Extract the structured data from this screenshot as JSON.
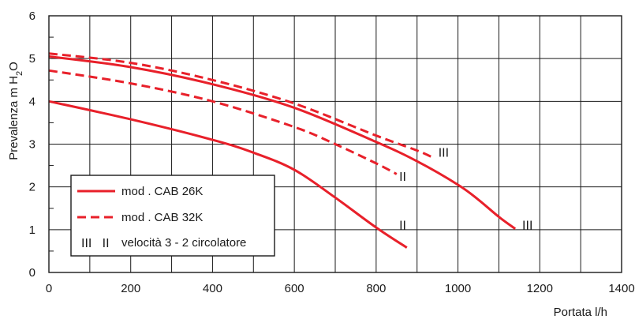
{
  "chart_data": {
    "type": "line",
    "title": "",
    "xlabel": "Portata l/h",
    "ylabel_main": "Prevalenza m H",
    "ylabel_sub": "2",
    "ylabel_tail": "O",
    "xlim": [
      0,
      1400
    ],
    "ylim": [
      0,
      6
    ],
    "x_ticks": [
      0,
      200,
      400,
      600,
      800,
      1000,
      1200,
      1400
    ],
    "y_ticks": [
      0,
      1,
      2,
      3,
      4,
      5,
      6
    ],
    "x_tick_labels": [
      "0",
      "200",
      "400",
      "600",
      "800",
      "1000",
      "1200",
      "1400"
    ],
    "y_tick_labels": [
      "0",
      "1",
      "2",
      "3",
      "4",
      "5",
      "6"
    ],
    "grid": true,
    "line_color": "#e8202a",
    "series": [
      {
        "label": "III",
        "style": "solid",
        "x": [
          0,
          200,
          400,
          600,
          800,
          900,
          1000,
          1050,
          1100,
          1140
        ],
        "y": [
          5.05,
          4.8,
          4.4,
          3.85,
          3.05,
          2.6,
          2.05,
          1.7,
          1.3,
          1.02
        ]
      },
      {
        "label": "II",
        "style": "solid",
        "x": [
          0,
          200,
          400,
          500,
          600,
          700,
          800,
          875
        ],
        "y": [
          4.0,
          3.58,
          3.1,
          2.8,
          2.4,
          1.75,
          1.05,
          0.58
        ]
      },
      {
        "label": "III",
        "style": "dashed",
        "x": [
          0,
          200,
          400,
          600,
          800,
          900,
          940
        ],
        "y": [
          5.12,
          4.9,
          4.5,
          3.95,
          3.2,
          2.85,
          2.68
        ]
      },
      {
        "label": "II",
        "style": "dashed",
        "x": [
          0,
          200,
          400,
          600,
          700,
          800,
          850
        ],
        "y": [
          4.72,
          4.42,
          4.0,
          3.4,
          3.0,
          2.55,
          2.3
        ]
      }
    ],
    "curve_labels": [
      {
        "text": "III",
        "x": 1170,
        "y": 1.12
      },
      {
        "text": "II",
        "x": 865,
        "y": 1.12
      },
      {
        "text": "III",
        "x": 965,
        "y": 2.82
      },
      {
        "text": "II",
        "x": 865,
        "y": 2.25
      }
    ],
    "legend": {
      "placement": "bottom-left",
      "entries": [
        {
          "style": "solid",
          "text": "mod . CAB 26K"
        },
        {
          "style": "dashed",
          "text": "mod . CAB 32K"
        },
        {
          "roman": "III   II",
          "text": "velocità 3 - 2 circolatore"
        }
      ]
    }
  }
}
